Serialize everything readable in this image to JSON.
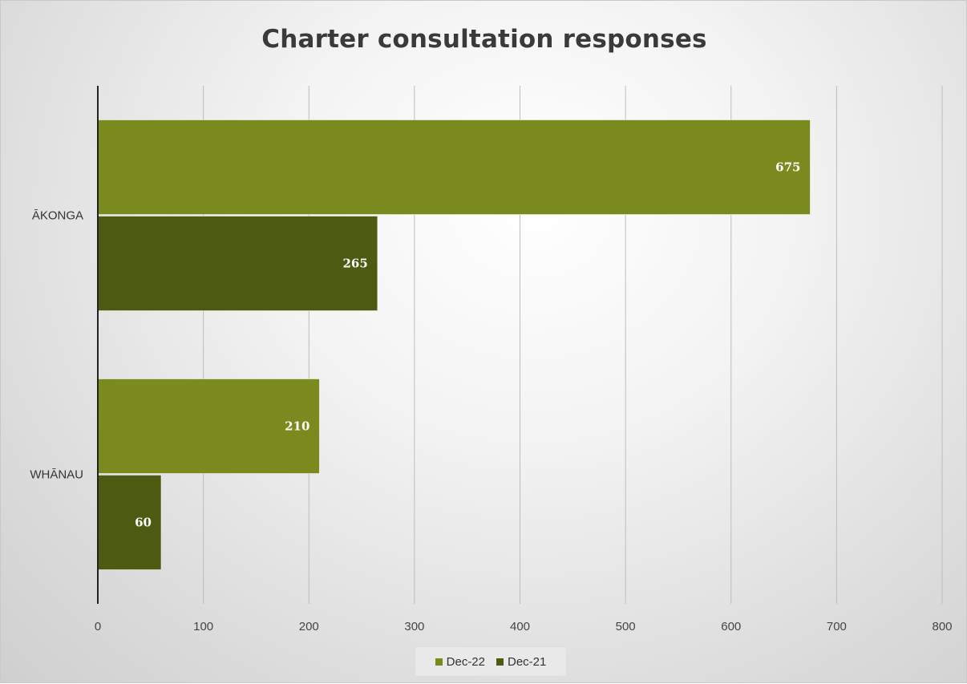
{
  "chart_data": {
    "type": "bar",
    "orientation": "horizontal",
    "title": "Charter consultation responses",
    "xlabel": "",
    "ylabel": "",
    "categories": [
      "ĀKONGA",
      "WHĀNAU"
    ],
    "series": [
      {
        "name": "Dec-22",
        "values": [
          675,
          210
        ],
        "color": "#7b8a1e"
      },
      {
        "name": "Dec-21",
        "values": [
          265,
          60
        ],
        "color": "#4c5a12"
      }
    ],
    "xlim": [
      0,
      800
    ],
    "x_ticks": [
      0,
      100,
      200,
      300,
      400,
      500,
      600,
      700,
      800
    ],
    "grid": true,
    "legend": "bottom",
    "data_labels": true
  }
}
